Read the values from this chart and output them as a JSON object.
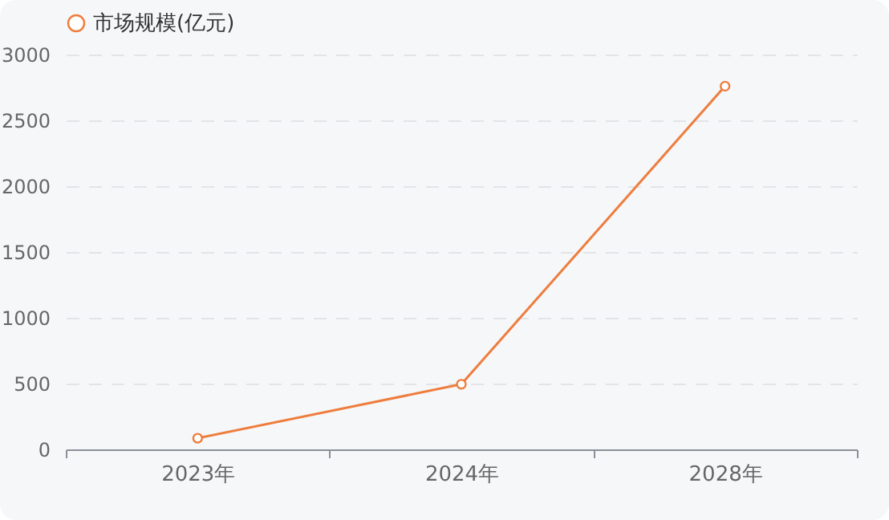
{
  "chart_data": {
    "type": "line",
    "categories": [
      "2023年",
      "2024年",
      "2028年"
    ],
    "series": [
      {
        "name": "市场规模(亿元)",
        "color": "#ee7d3d",
        "values": [
          85,
          495,
          2760
        ]
      }
    ],
    "ylim": [
      0,
      3000
    ],
    "yticks": [
      0,
      500,
      1000,
      1500,
      2000,
      2500,
      3000
    ],
    "grid": "y",
    "legend": "top",
    "marker": "circle",
    "line_style": "solid"
  }
}
